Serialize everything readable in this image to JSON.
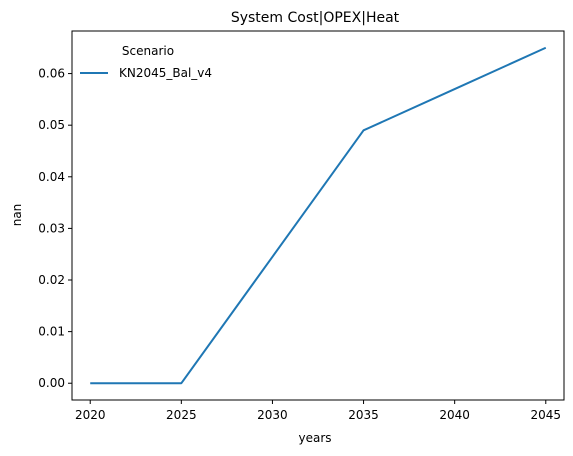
{
  "chart_data": {
    "type": "line",
    "title": "System Cost|OPEX|Heat",
    "xlabel": "years",
    "ylabel": "nan",
    "x": [
      2020,
      2025,
      2030,
      2035,
      2040,
      2045
    ],
    "xlim": [
      2019,
      2046
    ],
    "ylim": [
      -0.00325,
      0.06825
    ],
    "xticks": [
      "2020",
      "2025",
      "2030",
      "2035",
      "2040",
      "2045"
    ],
    "xtick_values": [
      2020,
      2025,
      2030,
      2035,
      2040,
      2045
    ],
    "yticks": [
      "0.00",
      "0.01",
      "0.02",
      "0.03",
      "0.04",
      "0.05",
      "0.06"
    ],
    "ytick_values": [
      0.0,
      0.01,
      0.02,
      0.03,
      0.04,
      0.05,
      0.06
    ],
    "grid": false,
    "legend": {
      "title": "Scenario",
      "placement": "top-left"
    },
    "series": [
      {
        "name": "KN2045_Bal_v4",
        "color": "#1f77b4",
        "values": [
          0.0,
          0.0,
          0.0245,
          0.049,
          0.057,
          0.065
        ]
      }
    ]
  }
}
